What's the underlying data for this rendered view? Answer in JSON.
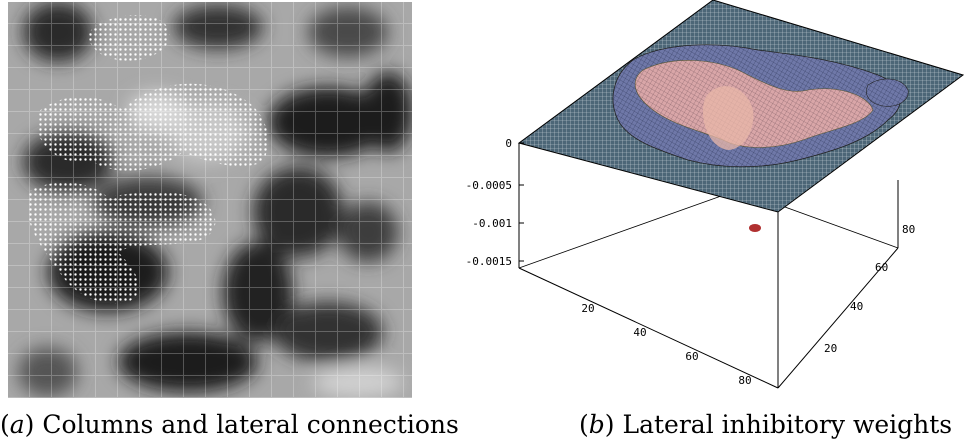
{
  "panel_a": {
    "caption_label": "a",
    "caption_text": "Columns and lateral connections"
  },
  "panel_b": {
    "caption_label": "b",
    "caption_text": "Lateral inhibitory weights",
    "z_ticks": [
      "0",
      "-0.0005",
      "-0.001",
      "-0.0015"
    ],
    "x_ticks": [
      "20",
      "40",
      "60",
      "80"
    ],
    "y_ticks": [
      "20",
      "40",
      "60",
      "80"
    ]
  },
  "colors": {
    "background": "#ffffff",
    "surface_plane": "#4c6677",
    "surface_bump": "#d9a6a8",
    "surface_valley": "#6f78a8"
  }
}
